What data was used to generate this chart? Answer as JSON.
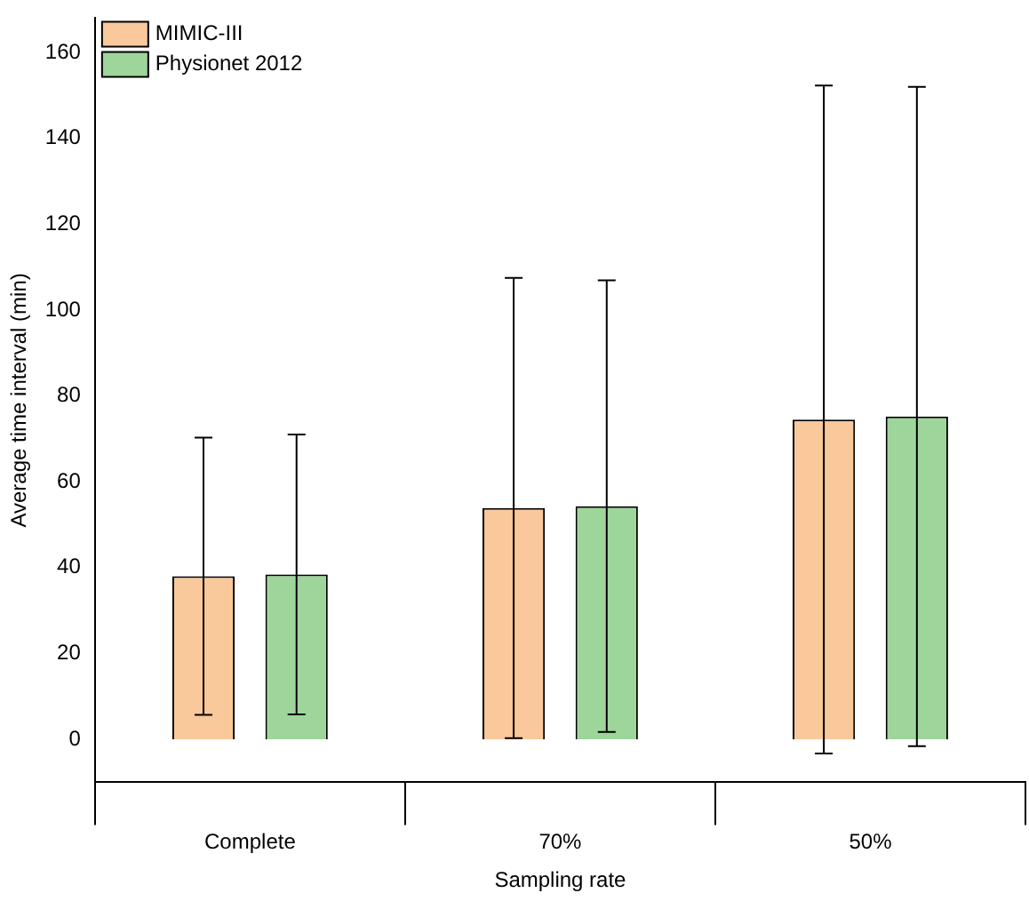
{
  "chart_data": {
    "type": "bar",
    "xlabel": "Sampling rate",
    "ylabel": "Average time interval (min)",
    "categories": [
      "Complete",
      "70%",
      "50%"
    ],
    "series": [
      {
        "name": "MIMIC-III",
        "color": "#f9c89b",
        "values": [
          38,
          53.9,
          74.5
        ],
        "errors": [
          32.3,
          53.6,
          77.8
        ]
      },
      {
        "name": "Physionet 2012",
        "color": "#9ed59b",
        "values": [
          38.4,
          54.3,
          75.2
        ],
        "errors": [
          32.6,
          52.6,
          76.8
        ]
      }
    ],
    "ylim": [
      -10,
      168
    ],
    "yticks": [
      0,
      20,
      40,
      60,
      80,
      100,
      120,
      140,
      160
    ],
    "grid": false,
    "legend": "top left"
  }
}
